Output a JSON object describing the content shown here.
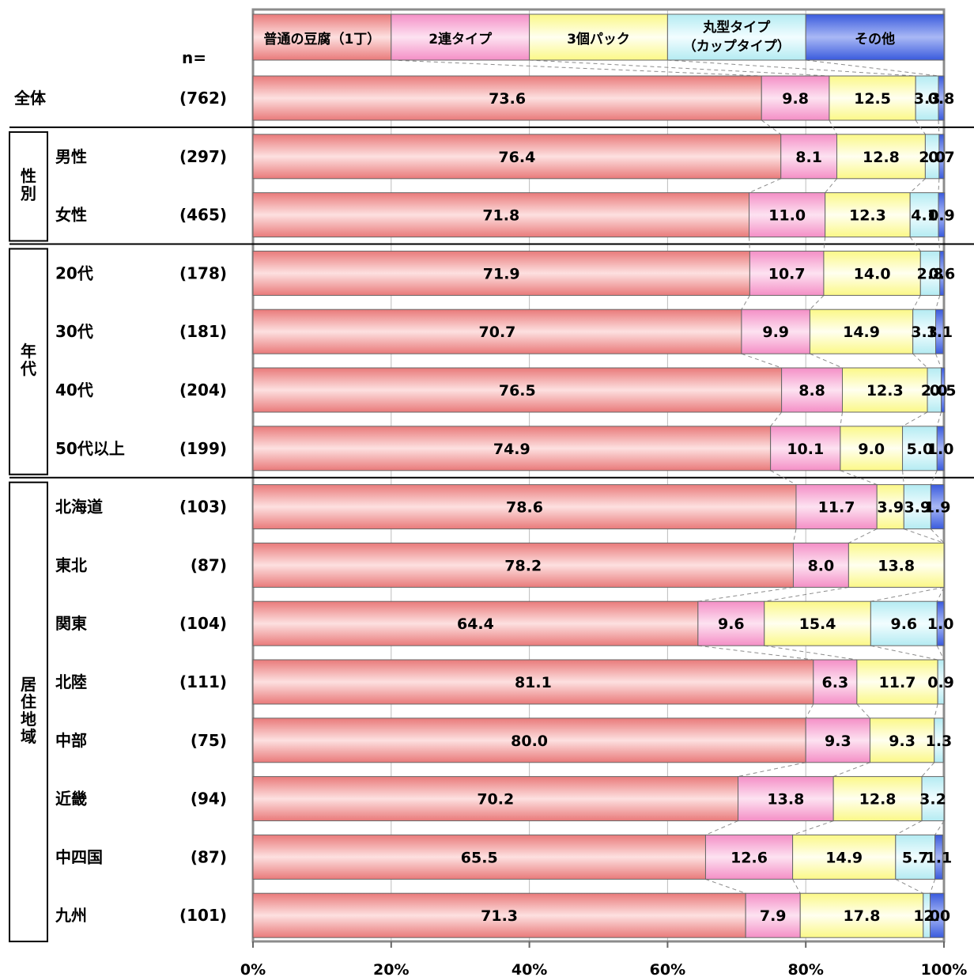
{
  "chart_data": {
    "type": "bar",
    "orientation": "horizontal",
    "stacked": true,
    "n_header": "n=",
    "series": [
      {
        "name": "普通の豆腐（1丁）",
        "color": "#ee8a8a"
      },
      {
        "name": "2連タイプ",
        "color": "#f6a9d1"
      },
      {
        "name": "3個パック",
        "color": "#fdfba6"
      },
      {
        "name_lines": [
          "丸型タイプ",
          "（カップタイプ）"
        ],
        "color": "#c6f0f5"
      },
      {
        "name": "その他",
        "color": "#5b77e6"
      }
    ],
    "groups": [
      {
        "label": "",
        "rows": [
          {
            "label": "全体",
            "n": "(762)",
            "values": [
              73.6,
              9.8,
              12.5,
              3.3,
              0.8
            ],
            "labels": [
              "73.6",
              "9.8",
              "12.5",
              "3.3",
              "0.8"
            ]
          }
        ]
      },
      {
        "label": "性別",
        "rows": [
          {
            "label": "男性",
            "n": "(297)",
            "values": [
              76.4,
              8.1,
              12.8,
              2.0,
              0.7
            ],
            "labels": [
              "76.4",
              "8.1",
              "12.8",
              "2.0",
              "0.7"
            ]
          },
          {
            "label": "女性",
            "n": "(465)",
            "values": [
              71.8,
              11.0,
              12.3,
              4.1,
              0.9
            ],
            "labels": [
              "71.8",
              "11.0",
              "12.3",
              "4.1",
              "0.9"
            ]
          }
        ]
      },
      {
        "label": "年代",
        "rows": [
          {
            "label": "20代",
            "n": "(178)",
            "values": [
              71.9,
              10.7,
              14.0,
              2.8,
              0.6
            ],
            "labels": [
              "71.9",
              "10.7",
              "14.0",
              "2.8",
              "0.6"
            ]
          },
          {
            "label": "30代",
            "n": "(181)",
            "values": [
              70.7,
              9.9,
              14.9,
              3.3,
              1.1
            ],
            "labels": [
              "70.7",
              "9.9",
              "14.9",
              "3.3",
              "1.1"
            ]
          },
          {
            "label": "40代",
            "n": "(204)",
            "values": [
              76.5,
              8.8,
              12.3,
              2.0,
              0.5
            ],
            "labels": [
              "76.5",
              "8.8",
              "12.3",
              "2.0",
              "0.5"
            ]
          },
          {
            "label": "50代以上",
            "n": "(199)",
            "values": [
              74.9,
              10.1,
              9.0,
              5.0,
              1.0
            ],
            "labels": [
              "74.9",
              "10.1",
              "9.0",
              "5.0",
              "1.0"
            ]
          }
        ]
      },
      {
        "label": "居住地域",
        "rows": [
          {
            "label": "北海道",
            "n": "(103)",
            "values": [
              78.6,
              11.7,
              3.9,
              3.9,
              1.9
            ],
            "labels": [
              "78.6",
              "11.7",
              "3.9",
              "3.9",
              "1.9"
            ]
          },
          {
            "label": "東北",
            "n": "(87)",
            "values": [
              78.2,
              8.0,
              13.8,
              0,
              0
            ],
            "labels": [
              "78.2",
              "8.0",
              "13.8",
              "",
              ""
            ]
          },
          {
            "label": "関東",
            "n": "(104)",
            "values": [
              64.4,
              9.6,
              15.4,
              9.6,
              1.0
            ],
            "labels": [
              "64.4",
              "9.6",
              "15.4",
              "9.6",
              "1.0"
            ]
          },
          {
            "label": "北陸",
            "n": "(111)",
            "values": [
              81.1,
              6.3,
              11.7,
              0.9,
              0
            ],
            "labels": [
              "81.1",
              "6.3",
              "11.7",
              "0.9",
              ""
            ]
          },
          {
            "label": "中部",
            "n": "(75)",
            "values": [
              80.0,
              9.3,
              9.3,
              1.3,
              0
            ],
            "labels": [
              "80.0",
              "9.3",
              "9.3",
              "1.3",
              ""
            ]
          },
          {
            "label": "近畿",
            "n": "(94)",
            "values": [
              70.2,
              13.8,
              12.8,
              3.2,
              0
            ],
            "labels": [
              "70.2",
              "13.8",
              "12.8",
              "3.2",
              ""
            ]
          },
          {
            "label": "中四国",
            "n": "(87)",
            "values": [
              65.5,
              12.6,
              14.9,
              5.7,
              1.1
            ],
            "labels": [
              "65.5",
              "12.6",
              "14.9",
              "5.7",
              "1.1"
            ]
          },
          {
            "label": "九州",
            "n": "(101)",
            "values": [
              71.3,
              7.9,
              17.8,
              1.0,
              2.0
            ],
            "labels": [
              "71.3",
              "7.9",
              "17.8",
              "1.0",
              "2.0"
            ]
          }
        ]
      }
    ],
    "x_ticks": [
      "0%",
      "20%",
      "40%",
      "60%",
      "80%",
      "100%"
    ],
    "xlim": [
      0,
      100
    ],
    "grid": true,
    "legend_position": "top (inside header bar)"
  }
}
